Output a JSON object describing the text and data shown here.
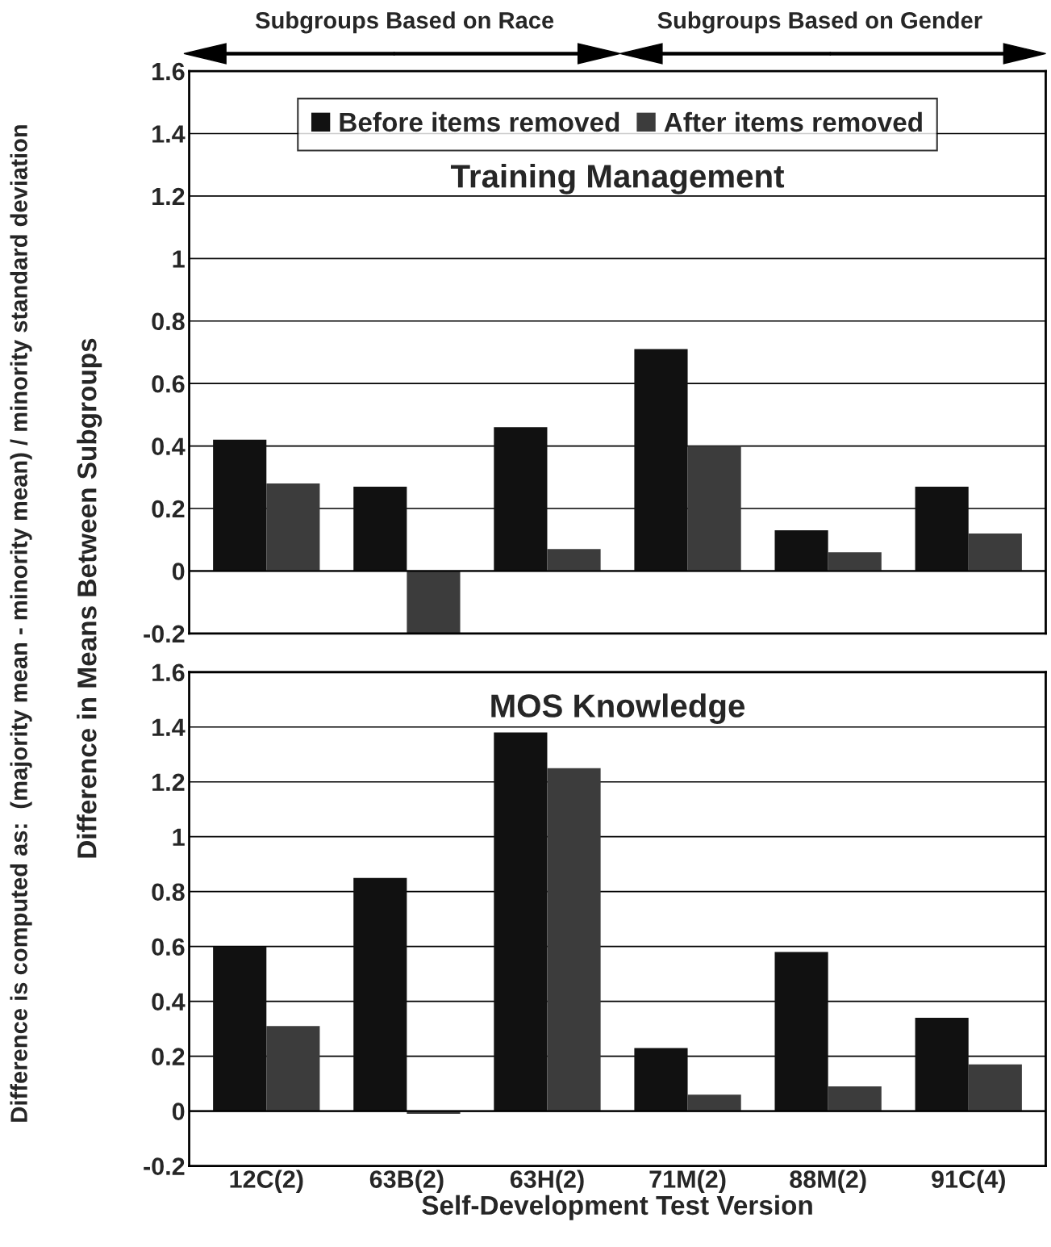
{
  "chart_data": [
    {
      "type": "bar",
      "title": "Training Management",
      "ylabel": "Difference in Means Between Subgroups",
      "categories": [
        null,
        null,
        null,
        null,
        null,
        null
      ],
      "series": [
        {
          "name": "Before items removed",
          "color": "#111111",
          "values": [
            0.42,
            0.27,
            0.46,
            0.71,
            0.13,
            0.27
          ]
        },
        {
          "name": "After items removed",
          "color": "#3c3c3c",
          "values": [
            0.28,
            -0.2,
            0.07,
            0.4,
            0.06,
            0.12
          ]
        }
      ],
      "ylim": [
        -0.2,
        1.6
      ],
      "yticks": [
        -0.2,
        0,
        0.2,
        0.4,
        0.6,
        0.8,
        1,
        1.2,
        1.4,
        1.6
      ],
      "grid": "y",
      "legend": "top",
      "tick_labels": "y",
      "annotations": [
        "Subgroups Based on Race",
        "Subgroups Based on Gender",
        "Difference is computed as:  (majority mean - minority mean) / minority standard deviation"
      ]
    },
    {
      "type": "bar",
      "title": "MOS Knowledge",
      "xlabel": "Self-Development Test Version",
      "categories": [
        "12C(2)",
        "63B(2)",
        "63H(2)",
        "71M(2)",
        "88M(2)",
        "91C(4)"
      ],
      "series": [
        {
          "color": "#111111",
          "values": [
            0.6,
            0.85,
            1.38,
            0.23,
            0.58,
            0.34
          ]
        },
        {
          "color": "#3c3c3c",
          "values": [
            0.31,
            -0.01,
            1.25,
            0.06,
            0.09,
            0.17
          ]
        }
      ],
      "ylim": [
        -0.2,
        1.6
      ],
      "yticks": [
        -0.2,
        0,
        0.2,
        0.4,
        0.6,
        0.8,
        1,
        1.2,
        1.4,
        1.6
      ],
      "grid": "y"
    }
  ]
}
